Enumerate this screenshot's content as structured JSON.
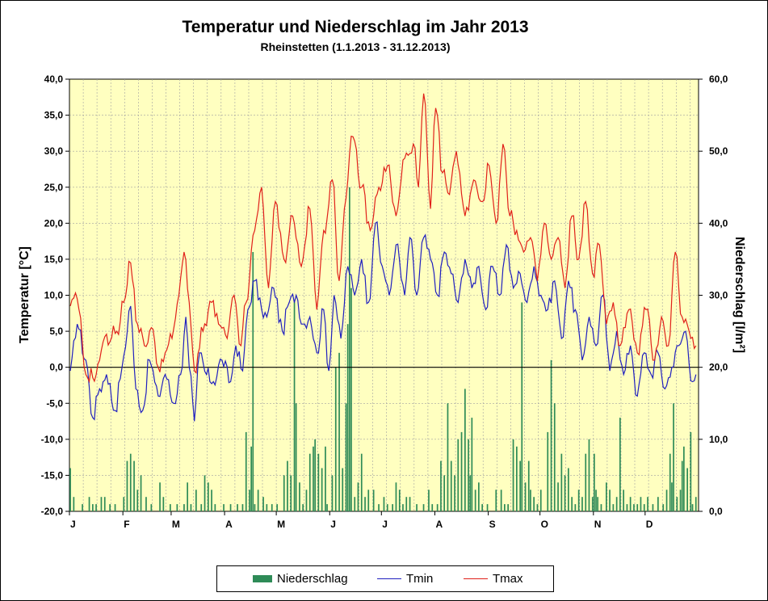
{
  "chart_data": {
    "type": "bar+line",
    "title": "Temperatur und Niederschlag im Jahr 2013",
    "subtitle": "Rheinstetten (1.1.2013 - 31.12.2013)",
    "ylabel_left": "Temperatur [°C]",
    "ylabel_right": "Niederschlag [l/m²]",
    "ylim_left": [
      -20,
      40
    ],
    "ylim_right": [
      0,
      60
    ],
    "yticks_left": [
      "-20,0",
      "-15,0",
      "-10,0",
      "-5,0",
      "0,0",
      "5,0",
      "10,0",
      "15,0",
      "20,0",
      "25,0",
      "30,0",
      "35,0",
      "40,0"
    ],
    "yticks_right": [
      "0,0",
      "10,0",
      "20,0",
      "30,0",
      "40,0",
      "50,0",
      "60,0"
    ],
    "month_labels": [
      "J",
      "F",
      "M",
      "A",
      "M",
      "J",
      "J",
      "A",
      "S",
      "O",
      "N",
      "D"
    ],
    "grid": true,
    "plot_background": "#ffffc0",
    "colors": {
      "tmin": "#1f1fbf",
      "tmax": "#e0201a",
      "niederschlag": "#2e8b57"
    },
    "legend": [
      "Niederschlag",
      "Tmin",
      "Tmax"
    ],
    "legend_placement": "bottom",
    "tmax_anchors": [
      [
        1,
        8.5
      ],
      [
        5,
        9.5
      ],
      [
        10,
        -1
      ],
      [
        16,
        -1
      ],
      [
        20,
        3.5
      ],
      [
        28,
        5
      ],
      [
        32,
        9
      ],
      [
        36,
        14.5
      ],
      [
        40,
        6
      ],
      [
        44,
        3
      ],
      [
        48,
        5.5
      ],
      [
        52,
        0
      ],
      [
        56,
        2
      ],
      [
        60,
        4
      ],
      [
        64,
        10
      ],
      [
        67,
        16
      ],
      [
        70,
        9
      ],
      [
        73,
        -0.5
      ],
      [
        78,
        5
      ],
      [
        83,
        9
      ],
      [
        87,
        6
      ],
      [
        92,
        4
      ],
      [
        96,
        10
      ],
      [
        100,
        3
      ],
      [
        103,
        9
      ],
      [
        108,
        19
      ],
      [
        112,
        25
      ],
      [
        116,
        11
      ],
      [
        120,
        23
      ],
      [
        125,
        15
      ],
      [
        130,
        21
      ],
      [
        135,
        14
      ],
      [
        140,
        22
      ],
      [
        144,
        8
      ],
      [
        148,
        19
      ],
      [
        153,
        26
      ],
      [
        157,
        12
      ],
      [
        160,
        22
      ],
      [
        165,
        32
      ],
      [
        170,
        25
      ],
      [
        175,
        19
      ],
      [
        180,
        25
      ],
      [
        185,
        28
      ],
      [
        190,
        21
      ],
      [
        195,
        29
      ],
      [
        200,
        31
      ],
      [
        203,
        25
      ],
      [
        206,
        38
      ],
      [
        210,
        22
      ],
      [
        213,
        36
      ],
      [
        217,
        27
      ],
      [
        221,
        24
      ],
      [
        225,
        30
      ],
      [
        230,
        21
      ],
      [
        235,
        26
      ],
      [
        240,
        23
      ],
      [
        244,
        28
      ],
      [
        248,
        20
      ],
      [
        252,
        31
      ],
      [
        256,
        21
      ],
      [
        260,
        19
      ],
      [
        264,
        16
      ],
      [
        268,
        18
      ],
      [
        272,
        12
      ],
      [
        276,
        20
      ],
      [
        280,
        15
      ],
      [
        284,
        18
      ],
      [
        288,
        11
      ],
      [
        292,
        21
      ],
      [
        296,
        15
      ],
      [
        300,
        23
      ],
      [
        304,
        13
      ],
      [
        308,
        17
      ],
      [
        312,
        6
      ],
      [
        316,
        9
      ],
      [
        320,
        3
      ],
      [
        325,
        8
      ],
      [
        330,
        2
      ],
      [
        335,
        8
      ],
      [
        340,
        1
      ],
      [
        344,
        7
      ],
      [
        348,
        3
      ],
      [
        352,
        16
      ],
      [
        356,
        7
      ],
      [
        360,
        5
      ],
      [
        364,
        3
      ]
    ],
    "tmin_anchors": [
      [
        1,
        -0.5
      ],
      [
        5,
        6
      ],
      [
        10,
        1
      ],
      [
        14,
        -7
      ],
      [
        18,
        -3
      ],
      [
        22,
        -1
      ],
      [
        27,
        -6
      ],
      [
        31,
        0
      ],
      [
        36,
        8.5
      ],
      [
        39,
        -3
      ],
      [
        43,
        -6
      ],
      [
        47,
        1
      ],
      [
        52,
        -4
      ],
      [
        56,
        -1
      ],
      [
        61,
        -5
      ],
      [
        65,
        -1
      ],
      [
        68,
        7
      ],
      [
        70,
        0
      ],
      [
        73,
        -7.5
      ],
      [
        76,
        2
      ],
      [
        80,
        -1
      ],
      [
        84,
        -2
      ],
      [
        89,
        1
      ],
      [
        94,
        -2
      ],
      [
        97,
        3
      ],
      [
        101,
        -0.5
      ],
      [
        104,
        8
      ],
      [
        108,
        12
      ],
      [
        112,
        8
      ],
      [
        115,
        7
      ],
      [
        119,
        11
      ],
      [
        124,
        5
      ],
      [
        128,
        9
      ],
      [
        132,
        10
      ],
      [
        136,
        6
      ],
      [
        140,
        7
      ],
      [
        144,
        2
      ],
      [
        148,
        8
      ],
      [
        151,
        -0.5
      ],
      [
        154,
        10
      ],
      [
        158,
        4
      ],
      [
        162,
        14
      ],
      [
        166,
        10
      ],
      [
        170,
        15
      ],
      [
        174,
        9
      ],
      [
        178,
        20
      ],
      [
        182,
        14
      ],
      [
        186,
        10
      ],
      [
        190,
        17
      ],
      [
        195,
        10
      ],
      [
        198,
        18
      ],
      [
        202,
        10
      ],
      [
        206,
        18
      ],
      [
        210,
        15
      ],
      [
        214,
        10
      ],
      [
        218,
        16
      ],
      [
        222,
        13
      ],
      [
        226,
        9
      ],
      [
        230,
        15
      ],
      [
        234,
        11
      ],
      [
        238,
        14
      ],
      [
        242,
        8
      ],
      [
        246,
        14
      ],
      [
        250,
        10
      ],
      [
        254,
        17
      ],
      [
        258,
        11
      ],
      [
        262,
        13
      ],
      [
        266,
        9
      ],
      [
        270,
        14
      ],
      [
        274,
        10
      ],
      [
        278,
        8
      ],
      [
        282,
        12
      ],
      [
        286,
        4
      ],
      [
        290,
        12
      ],
      [
        294,
        8
      ],
      [
        298,
        1
      ],
      [
        302,
        7
      ],
      [
        306,
        3
      ],
      [
        310,
        10
      ],
      [
        314,
        -0.5
      ],
      [
        318,
        5
      ],
      [
        322,
        -1
      ],
      [
        326,
        3
      ],
      [
        330,
        -4
      ],
      [
        334,
        2
      ],
      [
        338,
        -1
      ],
      [
        342,
        2
      ],
      [
        346,
        -3
      ],
      [
        350,
        0
      ],
      [
        354,
        3
      ],
      [
        358,
        5
      ],
      [
        362,
        -2
      ],
      [
        364,
        -1
      ]
    ],
    "niederschlag": [
      [
        1,
        6
      ],
      [
        3,
        2
      ],
      [
        8,
        1
      ],
      [
        12,
        2
      ],
      [
        14,
        1
      ],
      [
        16,
        1
      ],
      [
        19,
        2
      ],
      [
        21,
        2
      ],
      [
        24,
        1
      ],
      [
        27,
        1
      ],
      [
        32,
        2
      ],
      [
        34,
        7
      ],
      [
        36,
        8
      ],
      [
        38,
        7
      ],
      [
        40,
        3
      ],
      [
        42,
        5
      ],
      [
        45,
        2
      ],
      [
        48,
        1
      ],
      [
        53,
        4
      ],
      [
        55,
        2
      ],
      [
        59,
        1
      ],
      [
        63,
        1
      ],
      [
        67,
        1
      ],
      [
        69,
        4
      ],
      [
        71,
        1
      ],
      [
        74,
        3
      ],
      [
        77,
        1
      ],
      [
        79,
        5
      ],
      [
        81,
        4
      ],
      [
        83,
        3
      ],
      [
        85,
        1
      ],
      [
        90,
        1
      ],
      [
        94,
        1
      ],
      [
        98,
        1
      ],
      [
        101,
        1
      ],
      [
        103,
        11
      ],
      [
        105,
        3
      ],
      [
        106,
        9
      ],
      [
        107,
        36
      ],
      [
        108,
        1
      ],
      [
        110,
        3
      ],
      [
        113,
        2
      ],
      [
        115,
        1
      ],
      [
        118,
        1
      ],
      [
        121,
        1
      ],
      [
        125,
        5
      ],
      [
        127,
        7
      ],
      [
        129,
        5
      ],
      [
        131,
        29
      ],
      [
        132,
        15
      ],
      [
        134,
        4
      ],
      [
        136,
        1
      ],
      [
        138,
        3
      ],
      [
        140,
        8
      ],
      [
        142,
        9
      ],
      [
        143,
        10
      ],
      [
        145,
        8
      ],
      [
        147,
        6
      ],
      [
        149,
        9
      ],
      [
        150,
        1
      ],
      [
        153,
        5
      ],
      [
        155,
        20
      ],
      [
        157,
        22
      ],
      [
        159,
        6
      ],
      [
        161,
        15
      ],
      [
        162,
        26
      ],
      [
        163,
        45
      ],
      [
        164,
        31
      ],
      [
        166,
        2
      ],
      [
        168,
        4
      ],
      [
        170,
        8
      ],
      [
        172,
        2
      ],
      [
        174,
        3
      ],
      [
        177,
        3
      ],
      [
        180,
        1
      ],
      [
        183,
        2
      ],
      [
        185,
        1
      ],
      [
        188,
        1
      ],
      [
        190,
        4
      ],
      [
        192,
        3
      ],
      [
        194,
        1
      ],
      [
        196,
        2
      ],
      [
        198,
        2
      ],
      [
        202,
        1
      ],
      [
        206,
        1
      ],
      [
        209,
        3
      ],
      [
        211,
        1
      ],
      [
        214,
        1
      ],
      [
        216,
        7
      ],
      [
        218,
        5
      ],
      [
        220,
        15
      ],
      [
        222,
        7
      ],
      [
        224,
        5
      ],
      [
        226,
        10
      ],
      [
        228,
        11
      ],
      [
        230,
        17
      ],
      [
        232,
        10
      ],
      [
        233,
        5
      ],
      [
        234,
        13
      ],
      [
        236,
        3
      ],
      [
        238,
        4
      ],
      [
        240,
        1
      ],
      [
        243,
        1
      ],
      [
        248,
        3
      ],
      [
        251,
        3
      ],
      [
        253,
        1
      ],
      [
        255,
        1
      ],
      [
        258,
        10
      ],
      [
        260,
        9
      ],
      [
        262,
        7
      ],
      [
        263,
        29
      ],
      [
        265,
        4
      ],
      [
        267,
        7
      ],
      [
        268,
        3
      ],
      [
        270,
        2
      ],
      [
        272,
        1
      ],
      [
        274,
        3
      ],
      [
        278,
        11
      ],
      [
        280,
        21
      ],
      [
        282,
        15
      ],
      [
        284,
        4
      ],
      [
        286,
        8
      ],
      [
        288,
        5
      ],
      [
        290,
        6
      ],
      [
        292,
        2
      ],
      [
        294,
        1
      ],
      [
        296,
        3
      ],
      [
        298,
        2
      ],
      [
        300,
        8
      ],
      [
        302,
        10
      ],
      [
        304,
        2
      ],
      [
        305,
        8
      ],
      [
        306,
        3
      ],
      [
        307,
        2
      ],
      [
        309,
        1
      ],
      [
        312,
        4
      ],
      [
        314,
        3
      ],
      [
        316,
        1
      ],
      [
        318,
        2
      ],
      [
        320,
        13
      ],
      [
        322,
        3
      ],
      [
        324,
        1
      ],
      [
        326,
        2
      ],
      [
        328,
        1
      ],
      [
        330,
        1
      ],
      [
        332,
        2
      ],
      [
        334,
        1
      ],
      [
        336,
        2
      ],
      [
        339,
        1
      ],
      [
        342,
        2
      ],
      [
        345,
        1
      ],
      [
        347,
        3
      ],
      [
        349,
        8
      ],
      [
        350,
        4
      ],
      [
        351,
        15
      ],
      [
        353,
        2
      ],
      [
        355,
        3
      ],
      [
        356,
        7
      ],
      [
        357,
        9
      ],
      [
        359,
        6
      ],
      [
        361,
        11
      ],
      [
        362,
        1
      ],
      [
        364,
        2
      ]
    ]
  }
}
